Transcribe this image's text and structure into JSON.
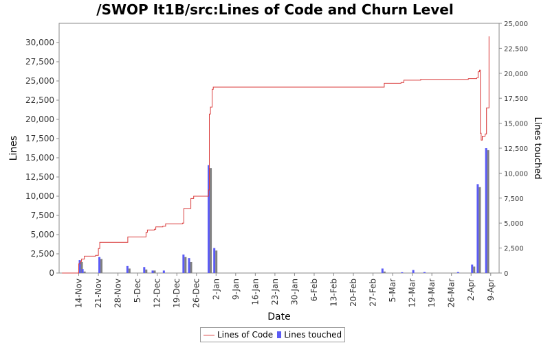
{
  "chart_data": {
    "type": "line",
    "title": "/SWOP It1B/src:Lines of Code and Churn Level",
    "xlabel": "Date",
    "ylabel": "Lines",
    "y2label": "Lines touched",
    "x_ticks": [
      "14-Nov",
      "21-Nov",
      "28-Nov",
      "5-Dec",
      "12-Dec",
      "19-Dec",
      "26-Dec",
      "2-Jan",
      "9-Jan",
      "16-Jan",
      "23-Jan",
      "30-Jan",
      "6-Feb",
      "13-Feb",
      "20-Feb",
      "27-Feb",
      "5-Mar",
      "12-Mar",
      "19-Mar",
      "26-Mar",
      "2-Apr",
      "9-Apr"
    ],
    "xlim_days": [
      -7,
      150
    ],
    "ylim": [
      0,
      32500
    ],
    "y_ticks": [
      0,
      2500,
      5000,
      7500,
      10000,
      12500,
      15000,
      17500,
      20000,
      22500,
      25000,
      27500,
      30000
    ],
    "y_tick_labels": [
      "0",
      "2,500",
      "5,000",
      "7,500",
      "10,000",
      "12,500",
      "15,000",
      "17,500",
      "20,000",
      "22,500",
      "25,000",
      "27,500",
      "30,000"
    ],
    "y2lim": [
      0,
      25000
    ],
    "y2_ticks": [
      0,
      2500,
      5000,
      7500,
      10000,
      12500,
      15000,
      17500,
      20000,
      22500,
      25000
    ],
    "y2_tick_labels": [
      "0",
      "2,500",
      "5,000",
      "7,500",
      "10,000",
      "12,500",
      "15,000",
      "17,500",
      "20,000",
      "22,500",
      "25,000"
    ],
    "legend_position": "bottom",
    "series": [
      {
        "name": "Lines of Code",
        "axis": "left",
        "color": "#d93a3a",
        "points": [
          [
            -6,
            0
          ],
          [
            0,
            1200
          ],
          [
            0.5,
            1500
          ],
          [
            1,
            1800
          ],
          [
            2,
            2200
          ],
          [
            6,
            2300
          ],
          [
            7,
            3200
          ],
          [
            7.5,
            4000
          ],
          [
            17,
            4000
          ],
          [
            17.5,
            4700
          ],
          [
            23,
            4700
          ],
          [
            24,
            5300
          ],
          [
            24.5,
            5600
          ],
          [
            27,
            5700
          ],
          [
            27.5,
            6000
          ],
          [
            30,
            6100
          ],
          [
            31,
            6400
          ],
          [
            37,
            6500
          ],
          [
            37.5,
            8400
          ],
          [
            39,
            8400
          ],
          [
            40,
            9700
          ],
          [
            41,
            10000
          ],
          [
            46,
            10000
          ],
          [
            46.3,
            10800
          ],
          [
            46.6,
            20700
          ],
          [
            47,
            21600
          ],
          [
            47.6,
            23900
          ],
          [
            48,
            24200
          ],
          [
            72,
            24200
          ],
          [
            100,
            24200
          ],
          [
            108,
            24200
          ],
          [
            109,
            24700
          ],
          [
            115,
            24800
          ],
          [
            116,
            25100
          ],
          [
            122,
            25200
          ],
          [
            135,
            25200
          ],
          [
            136,
            25200
          ],
          [
            139,
            25300
          ],
          [
            142,
            25400
          ],
          [
            142.5,
            26200
          ],
          [
            143,
            26400
          ],
          [
            143.3,
            18200
          ],
          [
            143.6,
            17300
          ],
          [
            144,
            17800
          ],
          [
            145,
            18100
          ],
          [
            145.5,
            21500
          ],
          [
            146,
            21500
          ],
          [
            146.4,
            30800
          ]
        ]
      },
      {
        "name": "Lines touched",
        "axis": "right",
        "color": "#5b5bf5",
        "alt_color": "#808080",
        "bars": [
          [
            0,
            1300,
            1100
          ],
          [
            1,
            400,
            150
          ],
          [
            7,
            1600,
            1400
          ],
          [
            17,
            700,
            450
          ],
          [
            23,
            600,
            350
          ],
          [
            26,
            250,
            250
          ],
          [
            30,
            250,
            0
          ],
          [
            37,
            1850,
            1600
          ],
          [
            39,
            1500,
            1100
          ],
          [
            46,
            10800,
            10500
          ],
          [
            48,
            2500,
            2250
          ],
          [
            108,
            450,
            150
          ],
          [
            115,
            80,
            0
          ],
          [
            119,
            300,
            0
          ],
          [
            123,
            100,
            0
          ],
          [
            135,
            100,
            0
          ],
          [
            140,
            850,
            650
          ],
          [
            142,
            8900,
            8600
          ],
          [
            145,
            12500,
            12300
          ]
        ]
      }
    ]
  }
}
